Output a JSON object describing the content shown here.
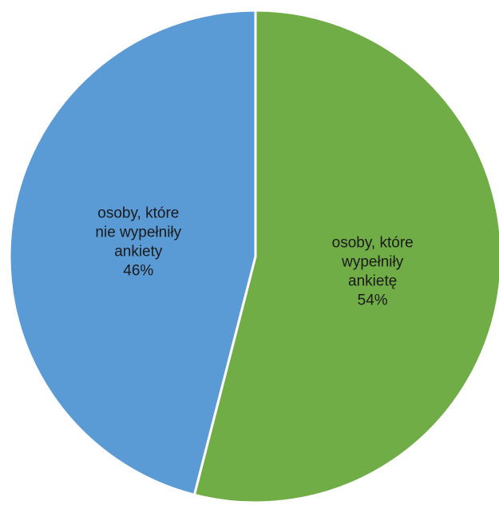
{
  "chart_data": {
    "type": "pie",
    "title": "",
    "start_angle_deg": 0,
    "direction": "clockwise",
    "slices": [
      {
        "label_lines": [
          "osoby, które",
          "wypełniły",
          "ankietę"
        ],
        "value": 54,
        "value_label": "54%",
        "color": "#70AD47"
      },
      {
        "label_lines": [
          "osoby, które",
          "nie wypełniły",
          "ankiety"
        ],
        "value": 46,
        "value_label": "46%",
        "color": "#5B9BD5"
      }
    ]
  }
}
